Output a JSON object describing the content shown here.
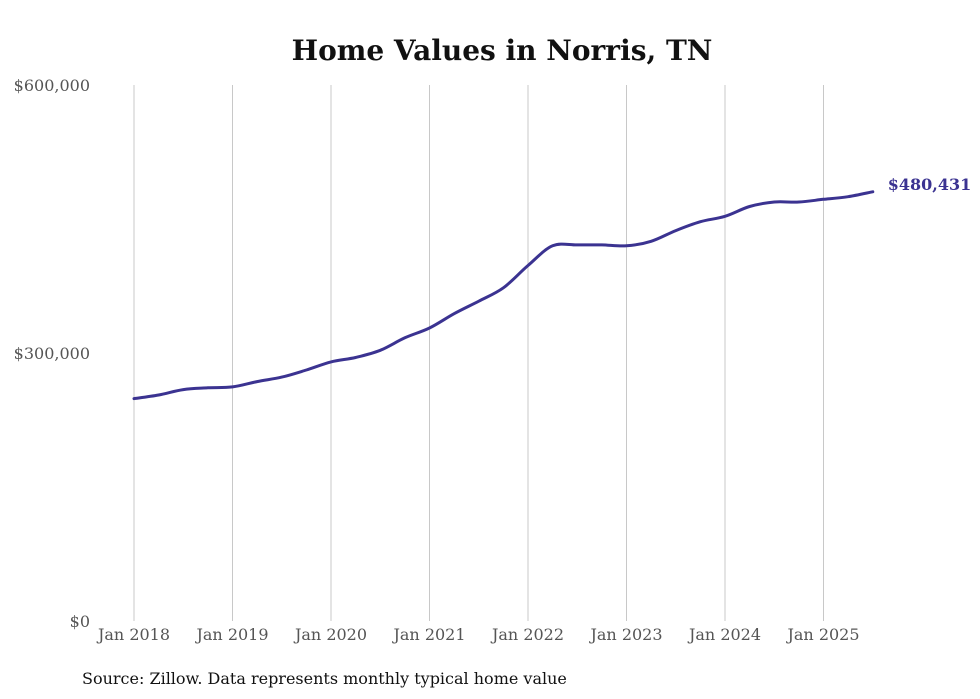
{
  "chart_data": {
    "type": "line",
    "title": "Home Values in Norris, TN",
    "xlabel": "",
    "ylabel": "",
    "ylim": [
      0,
      600000
    ],
    "y_ticks": [
      {
        "value": 0,
        "label": "$0"
      },
      {
        "value": 300000,
        "label": "$300,000"
      },
      {
        "value": 600000,
        "label": "$600,000"
      }
    ],
    "x_ticks": [
      {
        "value": 2018,
        "label": "Jan 2018"
      },
      {
        "value": 2019,
        "label": "Jan 2019"
      },
      {
        "value": 2020,
        "label": "Jan 2020"
      },
      {
        "value": 2021,
        "label": "Jan 2021"
      },
      {
        "value": 2022,
        "label": "Jan 2022"
      },
      {
        "value": 2023,
        "label": "Jan 2023"
      },
      {
        "value": 2024,
        "label": "Jan 2024"
      },
      {
        "value": 2025,
        "label": "Jan 2025"
      }
    ],
    "xlim": [
      2018,
      2025.5
    ],
    "grid": "vertical",
    "series": [
      {
        "name": "Typical home value",
        "color": "#3b3391",
        "x": [
          2018.0,
          2018.25,
          2018.5,
          2018.75,
          2019.0,
          2019.25,
          2019.5,
          2019.75,
          2020.0,
          2020.25,
          2020.5,
          2020.75,
          2021.0,
          2021.25,
          2021.5,
          2021.75,
          2022.0,
          2022.25,
          2022.5,
          2022.75,
          2023.0,
          2023.25,
          2023.5,
          2023.75,
          2024.0,
          2024.25,
          2024.5,
          2024.75,
          2025.0,
          2025.25,
          2025.5
        ],
        "values": [
          249000,
          253000,
          259000,
          261000,
          262000,
          268000,
          273000,
          281000,
          290000,
          295000,
          303000,
          317000,
          328000,
          344000,
          358000,
          373000,
          398000,
          420000,
          421000,
          421000,
          420000,
          425000,
          437000,
          447000,
          453000,
          464000,
          469000,
          469000,
          472000,
          475000,
          480431
        ]
      }
    ],
    "end_label": "$480,431"
  },
  "source_note": "Source: Zillow. Data represents monthly typical home value"
}
